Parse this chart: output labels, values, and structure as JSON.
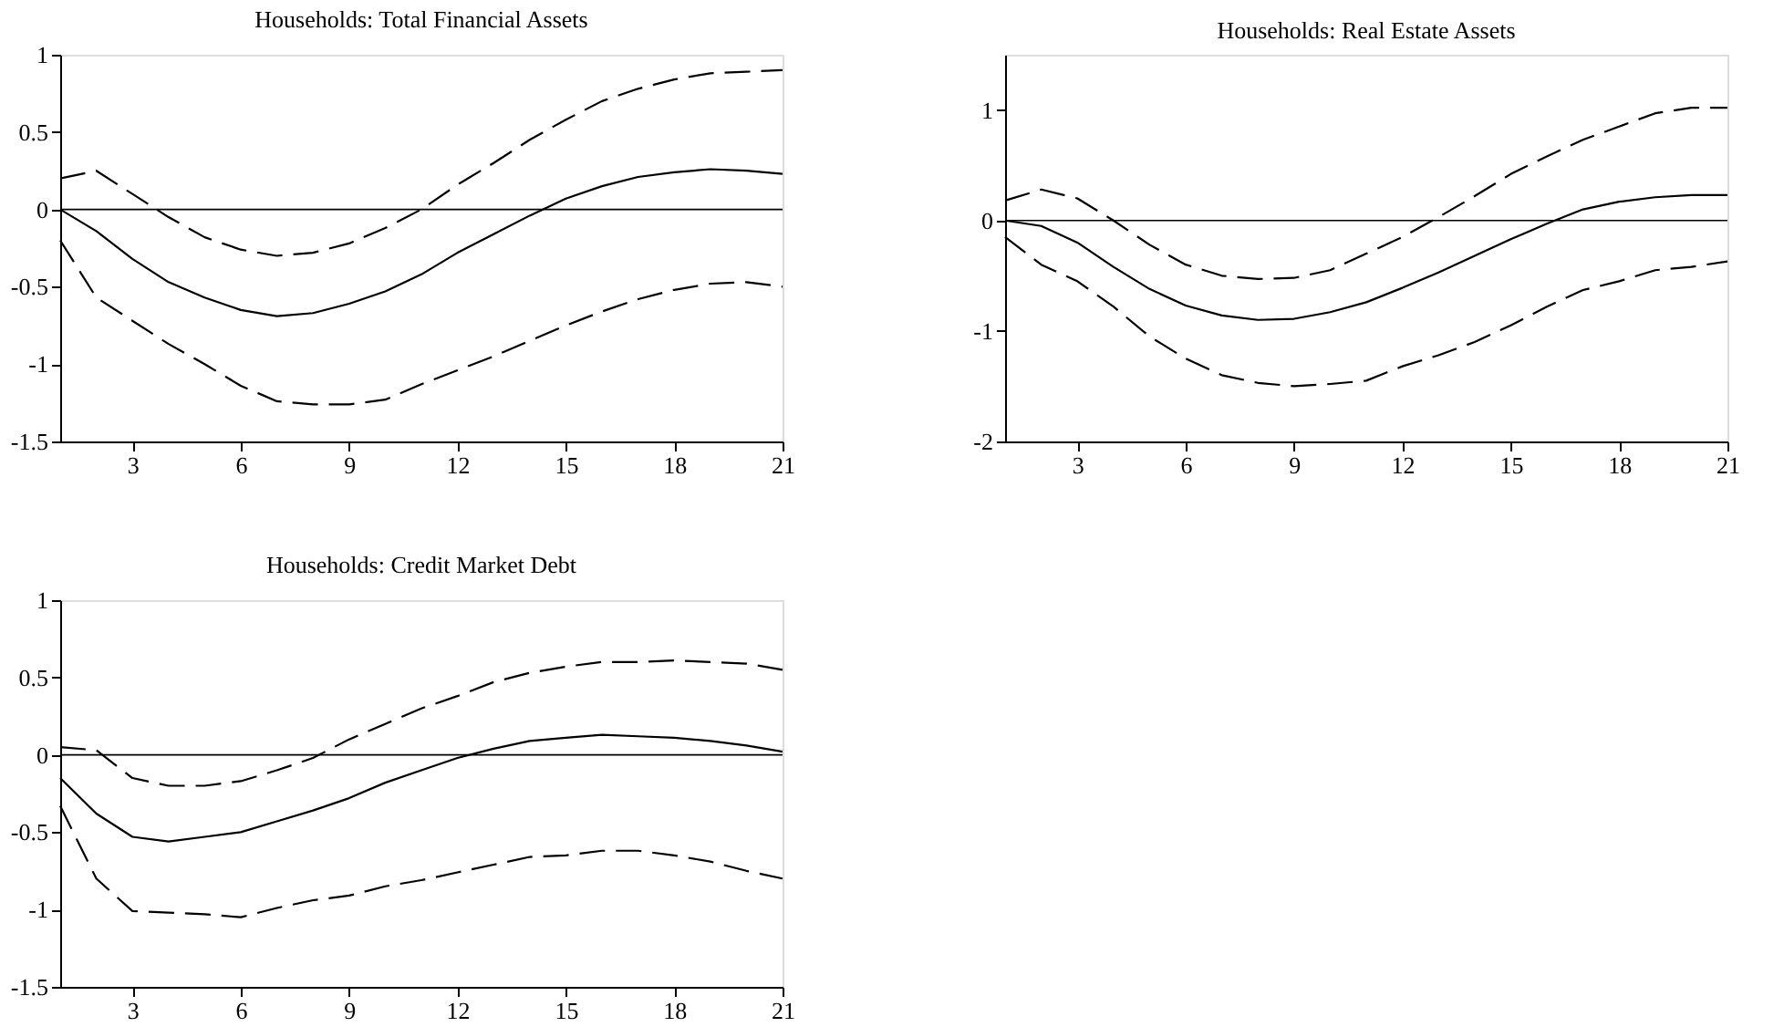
{
  "chart_data": [
    {
      "type": "line",
      "title": "Households: Total Financial Assets",
      "x": [
        1,
        2,
        3,
        4,
        5,
        6,
        7,
        8,
        9,
        10,
        11,
        12,
        13,
        14,
        15,
        16,
        17,
        18,
        19,
        20,
        21
      ],
      "xlim": [
        1,
        21
      ],
      "xticks": [
        3,
        6,
        9,
        12,
        15,
        18,
        21
      ],
      "ylim": [
        -1.5,
        1
      ],
      "yticks": [
        -1.5,
        -1,
        -0.5,
        0,
        0.5,
        1
      ],
      "grid": false,
      "series": [
        {
          "color": "#000000",
          "line_style": "solid",
          "values": [
            0,
            -0.14,
            -0.32,
            -0.47,
            -0.57,
            -0.65,
            -0.69,
            -0.67,
            -0.61,
            -0.53,
            -0.42,
            -0.28,
            -0.16,
            -0.04,
            0.07,
            0.15,
            0.21,
            0.24,
            0.26,
            0.25,
            0.23
          ]
        },
        {
          "color": "#000000",
          "line_style": "dashed",
          "values": [
            0.2,
            0.25,
            0.1,
            -0.05,
            -0.18,
            -0.26,
            -0.3,
            -0.28,
            -0.22,
            -0.12,
            0,
            0.16,
            0.3,
            0.45,
            0.58,
            0.7,
            0.78,
            0.84,
            0.88,
            0.89,
            0.9
          ]
        },
        {
          "color": "#000000",
          "line_style": "dashed",
          "values": [
            -0.2,
            -0.57,
            -0.72,
            -0.87,
            -1.0,
            -1.14,
            -1.24,
            -1.26,
            -1.26,
            -1.23,
            -1.13,
            -1.04,
            -0.95,
            -0.85,
            -0.75,
            -0.66,
            -0.58,
            -0.52,
            -0.48,
            -0.47,
            -0.5
          ]
        }
      ],
      "ref_lines": [
        {
          "axis": "y",
          "value": 0,
          "color": "#000000"
        }
      ]
    },
    {
      "type": "line",
      "title": "Households: Real Estate Assets",
      "x": [
        1,
        2,
        3,
        4,
        5,
        6,
        7,
        8,
        9,
        10,
        11,
        12,
        13,
        14,
        15,
        16,
        17,
        18,
        19,
        20,
        21
      ],
      "xlim": [
        1,
        21
      ],
      "xticks": [
        3,
        6,
        9,
        12,
        15,
        18,
        21
      ],
      "ylim": [
        -2,
        1.5
      ],
      "yticks": [
        -2,
        -1,
        0,
        1
      ],
      "grid": false,
      "series": [
        {
          "color": "#000000",
          "line_style": "solid",
          "values": [
            0,
            -0.05,
            -0.2,
            -0.42,
            -0.62,
            -0.77,
            -0.86,
            -0.9,
            -0.89,
            -0.83,
            -0.74,
            -0.61,
            -0.47,
            -0.32,
            -0.17,
            -0.03,
            0.1,
            0.17,
            0.21,
            0.23,
            0.23
          ]
        },
        {
          "color": "#000000",
          "line_style": "dashed",
          "values": [
            0.18,
            0.28,
            0.2,
            0.0,
            -0.22,
            -0.4,
            -0.5,
            -0.53,
            -0.52,
            -0.45,
            -0.3,
            -0.15,
            0.03,
            0.22,
            0.42,
            0.58,
            0.73,
            0.85,
            0.97,
            1.02,
            1.02
          ]
        },
        {
          "color": "#000000",
          "line_style": "dashed",
          "values": [
            -0.15,
            -0.4,
            -0.55,
            -0.78,
            -1.05,
            -1.25,
            -1.4,
            -1.47,
            -1.5,
            -1.48,
            -1.45,
            -1.32,
            -1.22,
            -1.1,
            -0.95,
            -0.78,
            -0.63,
            -0.55,
            -0.45,
            -0.42,
            -0.37
          ]
        }
      ],
      "ref_lines": [
        {
          "axis": "y",
          "value": 0,
          "color": "#000000"
        }
      ]
    },
    {
      "type": "line",
      "title": "Households: Credit Market Debt",
      "x": [
        1,
        2,
        3,
        4,
        5,
        6,
        7,
        8,
        9,
        10,
        11,
        12,
        13,
        14,
        15,
        16,
        17,
        18,
        19,
        20,
        21
      ],
      "xlim": [
        1,
        21
      ],
      "xticks": [
        3,
        6,
        9,
        12,
        15,
        18,
        21
      ],
      "ylim": [
        -1.5,
        1
      ],
      "yticks": [
        -1.5,
        -1,
        -0.5,
        0,
        0.5,
        1
      ],
      "grid": false,
      "series": [
        {
          "color": "#000000",
          "line_style": "solid",
          "values": [
            -0.15,
            -0.38,
            -0.53,
            -0.56,
            -0.53,
            -0.5,
            -0.43,
            -0.36,
            -0.28,
            -0.18,
            -0.1,
            -0.02,
            0.04,
            0.09,
            0.11,
            0.13,
            0.12,
            0.11,
            0.09,
            0.06,
            0.02
          ]
        },
        {
          "color": "#000000",
          "line_style": "dashed",
          "values": [
            0.05,
            0.03,
            -0.15,
            -0.2,
            -0.2,
            -0.17,
            -0.1,
            -0.02,
            0.1,
            0.2,
            0.3,
            0.38,
            0.47,
            0.53,
            0.57,
            0.6,
            0.6,
            0.61,
            0.6,
            0.59,
            0.55
          ]
        },
        {
          "color": "#000000",
          "line_style": "dashed",
          "values": [
            -0.33,
            -0.8,
            -1.01,
            -1.02,
            -1.03,
            -1.05,
            -0.99,
            -0.94,
            -0.91,
            -0.85,
            -0.81,
            -0.76,
            -0.71,
            -0.66,
            -0.65,
            -0.62,
            -0.62,
            -0.65,
            -0.69,
            -0.75,
            -0.8
          ]
        }
      ],
      "ref_lines": [
        {
          "axis": "y",
          "value": 0,
          "color": "#000000"
        }
      ]
    }
  ]
}
